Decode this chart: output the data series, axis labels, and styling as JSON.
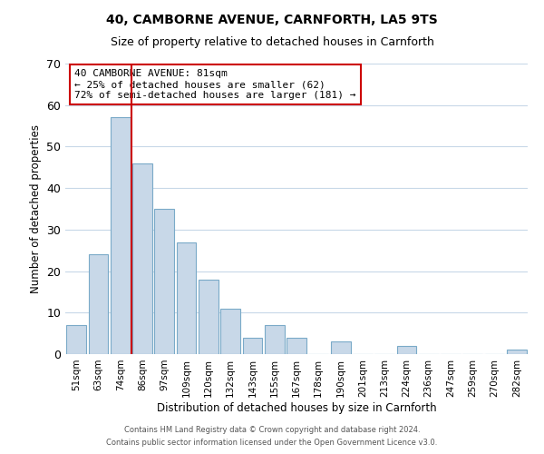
{
  "title": "40, CAMBORNE AVENUE, CARNFORTH, LA5 9TS",
  "subtitle": "Size of property relative to detached houses in Carnforth",
  "xlabel": "Distribution of detached houses by size in Carnforth",
  "ylabel": "Number of detached properties",
  "bin_labels": [
    "51sqm",
    "63sqm",
    "74sqm",
    "86sqm",
    "97sqm",
    "109sqm",
    "120sqm",
    "132sqm",
    "143sqm",
    "155sqm",
    "167sqm",
    "178sqm",
    "190sqm",
    "201sqm",
    "213sqm",
    "224sqm",
    "236sqm",
    "247sqm",
    "259sqm",
    "270sqm",
    "282sqm"
  ],
  "bar_values": [
    7,
    24,
    57,
    46,
    35,
    27,
    18,
    11,
    4,
    7,
    4,
    0,
    3,
    0,
    0,
    2,
    0,
    0,
    0,
    0,
    1
  ],
  "bar_color": "#c8d8e8",
  "bar_edge_color": "#7aaac8",
  "vline_bin_index": 2,
  "vline_color": "#cc0000",
  "annotation_text": "40 CAMBORNE AVENUE: 81sqm\n← 25% of detached houses are smaller (62)\n72% of semi-detached houses are larger (181) →",
  "annotation_box_color": "#ffffff",
  "annotation_box_edge": "#cc0000",
  "ylim": [
    0,
    70
  ],
  "yticks": [
    0,
    10,
    20,
    30,
    40,
    50,
    60,
    70
  ],
  "footer_line1": "Contains HM Land Registry data © Crown copyright and database right 2024.",
  "footer_line2": "Contains public sector information licensed under the Open Government Licence v3.0.",
  "bg_color": "#ffffff",
  "grid_color": "#c8d8e8",
  "title_fontsize": 10,
  "subtitle_fontsize": 9
}
